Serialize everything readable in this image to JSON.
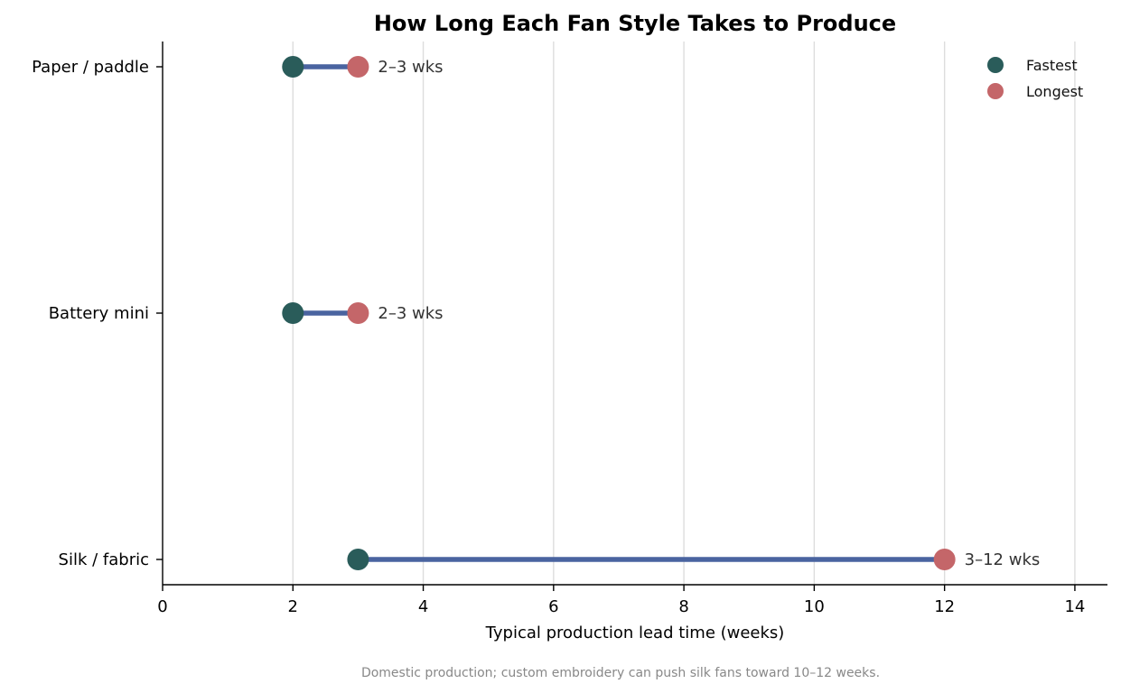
{
  "chart_data": {
    "type": "dumbbell",
    "title": "How Long Each Fan Style Takes to Produce",
    "xlabel": "Typical production lead time (weeks)",
    "ylabel": "",
    "xlim": [
      0,
      14.5
    ],
    "xticks": [
      0,
      2,
      4,
      6,
      8,
      10,
      12,
      14
    ],
    "grid": "vertical",
    "legend": "top-right",
    "categories": [
      "Paper / paddle",
      "Battery mini",
      "Silk / fabric"
    ],
    "series": [
      {
        "name": "Fastest",
        "color": "#2a5c5a",
        "values": [
          2,
          2,
          3
        ]
      },
      {
        "name": "Longest",
        "color": "#c46669",
        "values": [
          3,
          3,
          12
        ]
      }
    ],
    "connector_color": "#4a64a0",
    "range_labels": [
      "2–3 wks",
      "2–3 wks",
      "3–12 wks"
    ],
    "footnote": "Domestic production; custom embroidery can push silk fans toward 10–12 weeks."
  }
}
